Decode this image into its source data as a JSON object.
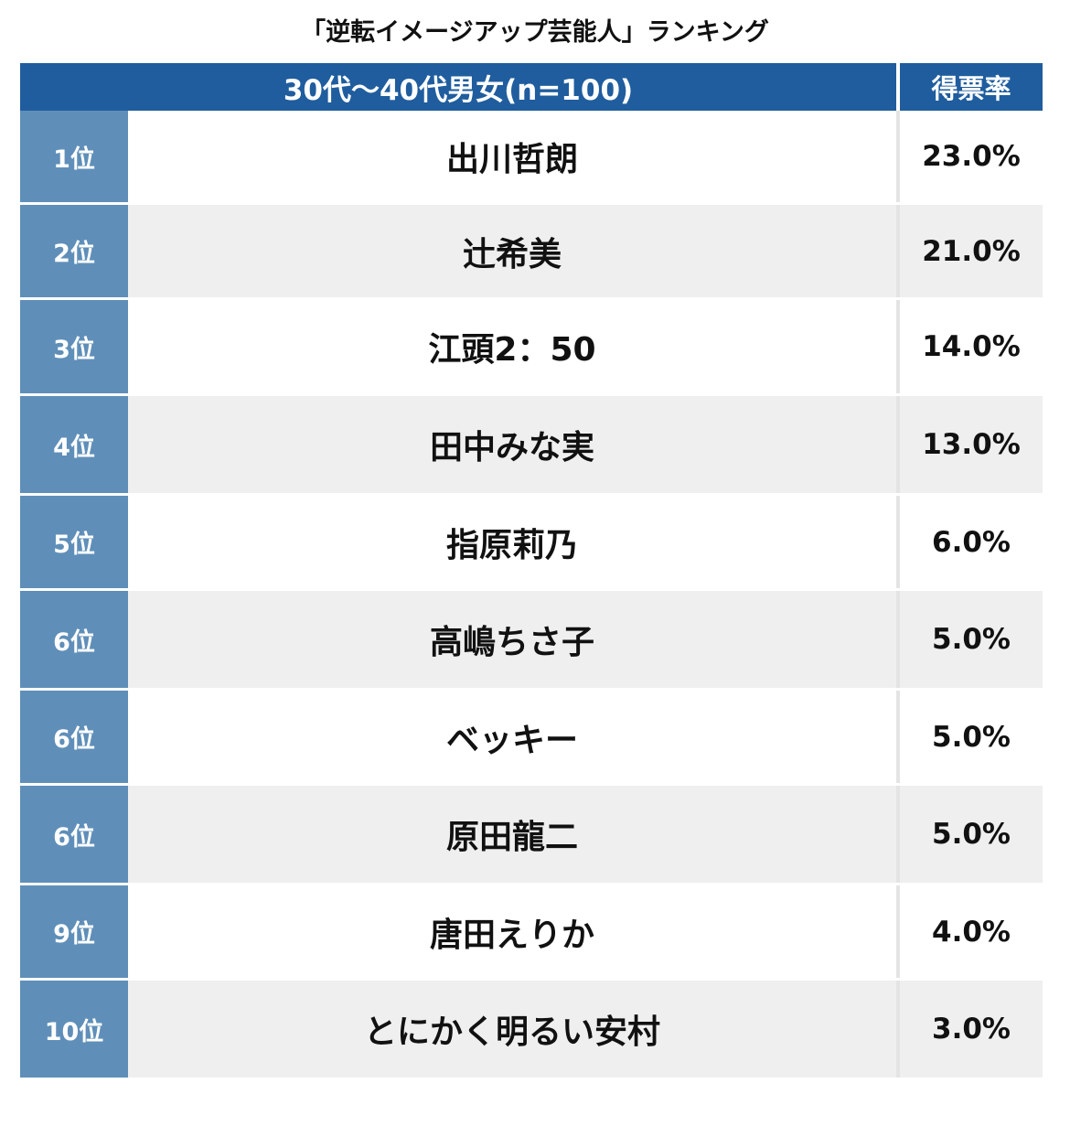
{
  "title": "「逆転イメージアップ芸能人」ランキング",
  "header": {
    "group": "30代〜40代男女(n=100)",
    "rate_label": "得票率"
  },
  "colors": {
    "header_bg": "#1f5d9e",
    "rank_bg": "#5f8fb9",
    "stripe": "#efefef"
  },
  "rows": [
    {
      "rank": "1位",
      "name": "出川哲朗",
      "rate": "23.0%"
    },
    {
      "rank": "2位",
      "name": "辻希美",
      "rate": "21.0%"
    },
    {
      "rank": "3位",
      "name": "江頭2：50",
      "rate": "14.0%"
    },
    {
      "rank": "4位",
      "name": "田中みな実",
      "rate": "13.0%"
    },
    {
      "rank": "5位",
      "name": "指原莉乃",
      "rate": "6.0%"
    },
    {
      "rank": "6位",
      "name": "高嶋ちさ子",
      "rate": "5.0%"
    },
    {
      "rank": "6位",
      "name": "ベッキー",
      "rate": "5.0%"
    },
    {
      "rank": "6位",
      "name": "原田龍二",
      "rate": "5.0%"
    },
    {
      "rank": "9位",
      "name": "唐田えりか",
      "rate": "4.0%"
    },
    {
      "rank": "10位",
      "name": "とにかく明るい安村",
      "rate": "3.0%"
    }
  ]
}
